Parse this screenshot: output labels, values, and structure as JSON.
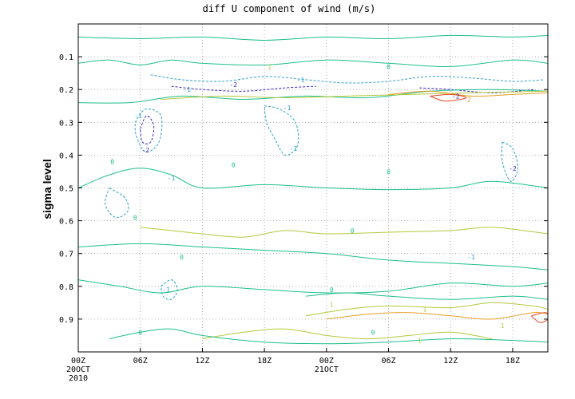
{
  "chart_data": {
    "type": "contour",
    "title": "diff U component of wind (m/s)",
    "ylabel": "sigma level",
    "xlabel": "",
    "y_axis": {
      "reversed": true,
      "ylim": [
        0.0,
        1.0
      ],
      "ticks": [
        0.1,
        0.2,
        0.3,
        0.4,
        0.5,
        0.6,
        0.7,
        0.8,
        0.9
      ],
      "tick_labels": [
        "0.1",
        "0.2",
        "0.3",
        "0.4",
        "0.5",
        "0.6",
        "0.7",
        "0.8",
        "0.9"
      ]
    },
    "x_axis": {
      "ticks": [
        0,
        6,
        12,
        18,
        24,
        30,
        36,
        42
      ],
      "tick_labels": [
        "00Z",
        "06Z",
        "12Z",
        "18Z",
        "00Z",
        "06Z",
        "12Z",
        "18Z"
      ],
      "date_labels": [
        {
          "at": 0,
          "lines": [
            "20OCT",
            "2010"
          ]
        },
        {
          "at": 24,
          "lines": [
            "21OCT"
          ]
        }
      ],
      "xlim": [
        0,
        45.4
      ]
    },
    "grid": "dotted",
    "contour_levels": [
      {
        "value": -2,
        "label": "-2",
        "color": "#3c28c8",
        "dashed": true
      },
      {
        "value": -1,
        "label": "-1",
        "color": "#2aa0c8",
        "dashed": true
      },
      {
        "value": 0,
        "label": "0",
        "color": "#1ebe8c",
        "dashed": false
      },
      {
        "value": 1,
        "label": "1",
        "color": "#b4c83c",
        "dashed": false
      },
      {
        "value": 2,
        "label": "2",
        "color": "#e6a028",
        "dashed": false
      },
      {
        "value": 3,
        "label": "3",
        "color": "#e64628",
        "dashed": false
      }
    ],
    "contours": [
      {
        "level": 0,
        "points": [
          [
            0,
            0.04
          ],
          [
            6,
            0.045
          ],
          [
            12,
            0.04
          ],
          [
            18,
            0.05
          ],
          [
            24,
            0.04
          ],
          [
            30,
            0.045
          ],
          [
            36,
            0.035
          ],
          [
            42,
            0.04
          ],
          [
            45.4,
            0.035
          ]
        ]
      },
      {
        "level": 0,
        "points": [
          [
            0,
            0.12
          ],
          [
            3,
            0.11
          ],
          [
            6,
            0.125
          ],
          [
            9,
            0.11
          ],
          [
            12,
            0.12
          ],
          [
            18,
            0.125
          ],
          [
            24,
            0.11
          ],
          [
            30,
            0.12
          ],
          [
            36,
            0.13
          ],
          [
            42,
            0.11
          ],
          [
            45.4,
            0.12
          ]
        ]
      },
      {
        "level": -1,
        "points": [
          [
            7,
            0.155
          ],
          [
            10,
            0.17
          ],
          [
            14,
            0.175
          ],
          [
            18,
            0.16
          ],
          [
            22,
            0.17
          ],
          [
            26,
            0.18
          ],
          [
            30,
            0.175
          ],
          [
            34,
            0.16
          ],
          [
            38,
            0.165
          ],
          [
            42,
            0.175
          ],
          [
            45,
            0.17
          ]
        ]
      },
      {
        "level": -2,
        "points": [
          [
            9,
            0.19
          ],
          [
            12,
            0.2
          ],
          [
            16,
            0.205
          ],
          [
            20,
            0.195
          ],
          [
            23,
            0.19
          ]
        ]
      },
      {
        "level": -2,
        "points": [
          [
            33,
            0.195
          ],
          [
            36,
            0.2
          ],
          [
            40,
            0.21
          ],
          [
            44,
            0.2
          ]
        ]
      },
      {
        "level": 0,
        "points": [
          [
            0,
            0.24
          ],
          [
            5,
            0.24
          ],
          [
            10,
            0.22
          ],
          [
            16,
            0.23
          ],
          [
            22,
            0.22
          ],
          [
            28,
            0.225
          ],
          [
            34,
            0.205
          ],
          [
            40,
            0.2
          ],
          [
            45.4,
            0.205
          ]
        ]
      },
      {
        "level": 1,
        "points": [
          [
            8,
            0.23
          ],
          [
            14,
            0.22
          ],
          [
            20,
            0.225
          ],
          [
            26,
            0.22
          ],
          [
            32,
            0.215
          ],
          [
            38,
            0.21
          ],
          [
            45.4,
            0.205
          ]
        ]
      },
      {
        "level": 2,
        "points": [
          [
            30,
            0.215
          ],
          [
            34,
            0.205
          ],
          [
            38,
            0.22
          ],
          [
            42,
            0.215
          ],
          [
            45.4,
            0.21
          ]
        ]
      },
      {
        "level": 3,
        "points": [
          [
            34,
            0.22
          ],
          [
            36,
            0.215
          ],
          [
            37.5,
            0.225
          ],
          [
            35.5,
            0.235
          ],
          [
            34,
            0.22
          ]
        ]
      },
      {
        "level": -1,
        "points": [
          [
            5.5,
            0.3
          ],
          [
            6.5,
            0.26
          ],
          [
            8,
            0.28
          ],
          [
            7.8,
            0.36
          ],
          [
            6.5,
            0.39
          ],
          [
            5.6,
            0.34
          ],
          [
            5.5,
            0.3
          ]
        ]
      },
      {
        "level": -2,
        "points": [
          [
            6,
            0.32
          ],
          [
            6.6,
            0.28
          ],
          [
            7.3,
            0.31
          ],
          [
            7,
            0.36
          ],
          [
            6.2,
            0.36
          ],
          [
            6,
            0.32
          ]
        ]
      },
      {
        "level": -1,
        "points": [
          [
            18,
            0.25
          ],
          [
            19.5,
            0.26
          ],
          [
            21,
            0.3
          ],
          [
            21.2,
            0.37
          ],
          [
            20,
            0.4
          ],
          [
            19,
            0.35
          ],
          [
            18.2,
            0.3
          ],
          [
            18,
            0.25
          ]
        ]
      },
      {
        "level": -1,
        "points": [
          [
            41,
            0.36
          ],
          [
            42,
            0.38
          ],
          [
            42.5,
            0.44
          ],
          [
            41.8,
            0.48
          ],
          [
            41,
            0.42
          ],
          [
            41,
            0.36
          ]
        ]
      },
      {
        "level": 0,
        "points": [
          [
            0,
            0.5
          ],
          [
            3,
            0.46
          ],
          [
            6,
            0.44
          ],
          [
            9,
            0.46
          ],
          [
            12,
            0.5
          ],
          [
            18,
            0.49
          ],
          [
            24,
            0.5
          ],
          [
            30,
            0.505
          ],
          [
            36,
            0.5
          ],
          [
            40,
            0.48
          ],
          [
            45.4,
            0.5
          ]
        ]
      },
      {
        "level": -1,
        "points": [
          [
            3,
            0.5
          ],
          [
            4.5,
            0.53
          ],
          [
            4.8,
            0.57
          ],
          [
            3.6,
            0.59
          ],
          [
            2.6,
            0.55
          ],
          [
            3,
            0.5
          ]
        ]
      },
      {
        "level": 1,
        "points": [
          [
            6,
            0.62
          ],
          [
            9,
            0.63
          ],
          [
            12,
            0.64
          ],
          [
            16,
            0.65
          ],
          [
            20,
            0.63
          ],
          [
            24,
            0.64
          ],
          [
            30,
            0.635
          ],
          [
            36,
            0.63
          ],
          [
            40,
            0.62
          ],
          [
            45.4,
            0.64
          ]
        ]
      },
      {
        "level": 0,
        "points": [
          [
            0,
            0.68
          ],
          [
            6,
            0.67
          ],
          [
            12,
            0.68
          ],
          [
            18,
            0.69
          ],
          [
            24,
            0.7
          ],
          [
            30,
            0.72
          ],
          [
            36,
            0.73
          ],
          [
            42,
            0.74
          ],
          [
            45.4,
            0.75
          ]
        ]
      },
      {
        "level": -1,
        "points": [
          [
            8,
            0.8
          ],
          [
            9,
            0.78
          ],
          [
            9.6,
            0.81
          ],
          [
            9,
            0.84
          ],
          [
            8.2,
            0.83
          ],
          [
            8,
            0.8
          ]
        ]
      },
      {
        "level": 0,
        "points": [
          [
            0,
            0.78
          ],
          [
            4,
            0.8
          ],
          [
            8,
            0.82
          ],
          [
            12,
            0.8
          ],
          [
            18,
            0.81
          ],
          [
            24,
            0.82
          ],
          [
            30,
            0.815
          ],
          [
            36,
            0.79
          ],
          [
            42,
            0.8
          ],
          [
            45.4,
            0.79
          ]
        ]
      },
      {
        "level": 0,
        "points": [
          [
            22,
            0.83
          ],
          [
            26,
            0.82
          ],
          [
            30,
            0.83
          ],
          [
            36,
            0.84
          ],
          [
            42,
            0.83
          ],
          [
            45.4,
            0.84
          ]
        ]
      },
      {
        "level": 1,
        "points": [
          [
            22,
            0.89
          ],
          [
            26,
            0.87
          ],
          [
            30,
            0.86
          ],
          [
            36,
            0.865
          ],
          [
            40,
            0.85
          ],
          [
            44,
            0.86
          ],
          [
            45.4,
            0.87
          ]
        ]
      },
      {
        "level": 2,
        "points": [
          [
            24,
            0.9
          ],
          [
            28,
            0.885
          ],
          [
            32,
            0.88
          ],
          [
            36,
            0.89
          ],
          [
            40,
            0.9
          ],
          [
            44,
            0.88
          ],
          [
            45.4,
            0.885
          ]
        ]
      },
      {
        "level": 3,
        "points": [
          [
            43.8,
            0.89
          ],
          [
            45.2,
            0.88
          ],
          [
            45.4,
            0.9
          ],
          [
            44.6,
            0.91
          ],
          [
            43.8,
            0.89
          ]
        ]
      },
      {
        "level": 1,
        "points": [
          [
            12,
            0.96
          ],
          [
            16,
            0.94
          ],
          [
            20,
            0.93
          ],
          [
            24,
            0.95
          ],
          [
            28,
            0.96
          ],
          [
            32,
            0.95
          ],
          [
            36,
            0.94
          ],
          [
            40,
            0.96
          ]
        ]
      },
      {
        "level": 0,
        "points": [
          [
            3,
            0.96
          ],
          [
            6,
            0.94
          ],
          [
            9,
            0.93
          ],
          [
            12,
            0.95
          ],
          [
            18,
            0.97
          ],
          [
            24,
            0.975
          ],
          [
            30,
            0.97
          ],
          [
            36,
            0.96
          ],
          [
            42,
            0.965
          ],
          [
            45.4,
            0.97
          ]
        ]
      }
    ],
    "contour_labels": [
      {
        "x": 10.5,
        "y": 0.2,
        "text": "-1"
      },
      {
        "x": 15,
        "y": 0.185,
        "text": "-2"
      },
      {
        "x": 21.5,
        "y": 0.17,
        "text": "-1"
      },
      {
        "x": 36.5,
        "y": 0.22,
        "text": "-2"
      },
      {
        "x": 37.8,
        "y": 0.23,
        "text": "2"
      },
      {
        "x": 6.5,
        "y": 0.385,
        "text": "-2"
      },
      {
        "x": 5.8,
        "y": 0.28,
        "text": "-1"
      },
      {
        "x": 20.2,
        "y": 0.255,
        "text": "-1"
      },
      {
        "x": 20.8,
        "y": 0.38,
        "text": "-1"
      },
      {
        "x": 42,
        "y": 0.44,
        "text": "-2"
      },
      {
        "x": 9,
        "y": 0.47,
        "text": "-1"
      },
      {
        "x": 3.3,
        "y": 0.42,
        "text": "0"
      },
      {
        "x": 15,
        "y": 0.43,
        "text": "0"
      },
      {
        "x": 30,
        "y": 0.45,
        "text": "0"
      },
      {
        "x": 5.5,
        "y": 0.59,
        "text": "0"
      },
      {
        "x": 10,
        "y": 0.71,
        "text": "0"
      },
      {
        "x": 26.5,
        "y": 0.63,
        "text": "0"
      },
      {
        "x": 38,
        "y": 0.71,
        "text": "-1"
      },
      {
        "x": 8.5,
        "y": 0.81,
        "text": "-1"
      },
      {
        "x": 24.5,
        "y": 0.81,
        "text": "0"
      },
      {
        "x": 33.5,
        "y": 0.87,
        "text": "1"
      },
      {
        "x": 24.5,
        "y": 0.855,
        "text": "1"
      },
      {
        "x": 6,
        "y": 0.94,
        "text": "0"
      },
      {
        "x": 28.5,
        "y": 0.94,
        "text": "0"
      },
      {
        "x": 41,
        "y": 0.92,
        "text": "1"
      },
      {
        "x": 33,
        "y": 0.965,
        "text": "1"
      },
      {
        "x": 18.5,
        "y": 0.13,
        "text": "1"
      },
      {
        "x": 30,
        "y": 0.13,
        "text": "0"
      }
    ]
  }
}
